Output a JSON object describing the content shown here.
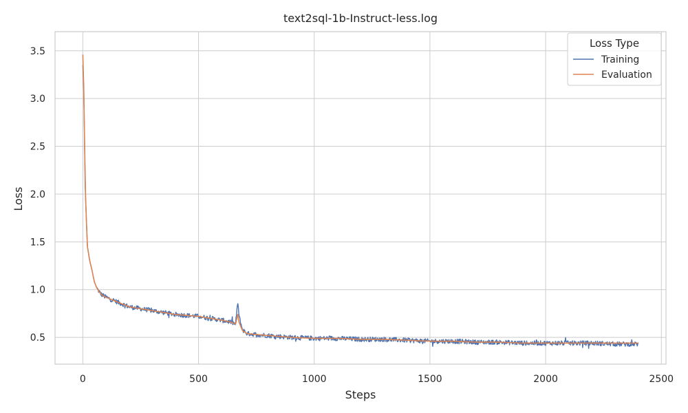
{
  "chart_data": {
    "type": "line",
    "title": "text2sql-1b-Instruct-less.log",
    "xlabel": "Steps",
    "ylabel": "Loss",
    "xlim": [
      -120,
      2520
    ],
    "ylim": [
      0.22,
      3.7
    ],
    "xticks": [
      0,
      500,
      1000,
      1500,
      2000,
      2500
    ],
    "xtick_labels": [
      "0",
      "500",
      "1000",
      "1500",
      "2000",
      "2500"
    ],
    "yticks": [
      0.5,
      1.0,
      1.5,
      2.0,
      2.5,
      3.0,
      3.5
    ],
    "ytick_labels": [
      "0.5",
      "1.0",
      "1.5",
      "2.0",
      "2.5",
      "3.0",
      "3.5"
    ],
    "grid": true,
    "legend": {
      "title": "Loss Type",
      "position": "top-right"
    },
    "series": [
      {
        "name": "Training",
        "color": "#4c72b0",
        "x": [
          0,
          5,
          10,
          15,
          20,
          30,
          40,
          50,
          60,
          70,
          80,
          100,
          120,
          150,
          180,
          200,
          250,
          300,
          350,
          400,
          450,
          500,
          550,
          600,
          640,
          660,
          670,
          675,
          690,
          710,
          750,
          800,
          850,
          900,
          1000,
          1100,
          1200,
          1300,
          1400,
          1500,
          1600,
          1700,
          1800,
          1900,
          2000,
          2100,
          2200,
          2300,
          2400
        ],
        "values": [
          3.35,
          3.0,
          2.1,
          1.75,
          1.45,
          1.3,
          1.2,
          1.08,
          1.02,
          0.98,
          0.95,
          0.92,
          0.9,
          0.87,
          0.84,
          0.82,
          0.8,
          0.78,
          0.76,
          0.74,
          0.73,
          0.72,
          0.7,
          0.68,
          0.66,
          0.64,
          0.87,
          0.72,
          0.58,
          0.54,
          0.53,
          0.52,
          0.51,
          0.5,
          0.49,
          0.49,
          0.48,
          0.48,
          0.47,
          0.46,
          0.46,
          0.45,
          0.45,
          0.44,
          0.44,
          0.44,
          0.44,
          0.43,
          0.43
        ],
        "noise": 0.025
      },
      {
        "name": "Evaluation",
        "color": "#dd8452",
        "x": [
          0,
          5,
          10,
          15,
          20,
          30,
          40,
          50,
          60,
          70,
          80,
          100,
          120,
          150,
          180,
          200,
          250,
          300,
          350,
          400,
          450,
          500,
          550,
          600,
          640,
          660,
          670,
          675,
          690,
          710,
          750,
          800,
          850,
          900,
          1000,
          1100,
          1200,
          1300,
          1400,
          1500,
          1600,
          1700,
          1800,
          1900,
          2000,
          2100,
          2200,
          2300,
          2400
        ],
        "values": [
          3.46,
          3.05,
          2.12,
          1.75,
          1.45,
          1.3,
          1.2,
          1.08,
          1.02,
          0.98,
          0.95,
          0.92,
          0.9,
          0.87,
          0.84,
          0.82,
          0.8,
          0.78,
          0.76,
          0.74,
          0.73,
          0.72,
          0.7,
          0.68,
          0.66,
          0.64,
          0.74,
          0.66,
          0.57,
          0.54,
          0.53,
          0.52,
          0.51,
          0.5,
          0.49,
          0.49,
          0.48,
          0.48,
          0.47,
          0.46,
          0.46,
          0.45,
          0.45,
          0.44,
          0.44,
          0.44,
          0.44,
          0.44,
          0.44
        ],
        "noise": 0
      }
    ]
  }
}
